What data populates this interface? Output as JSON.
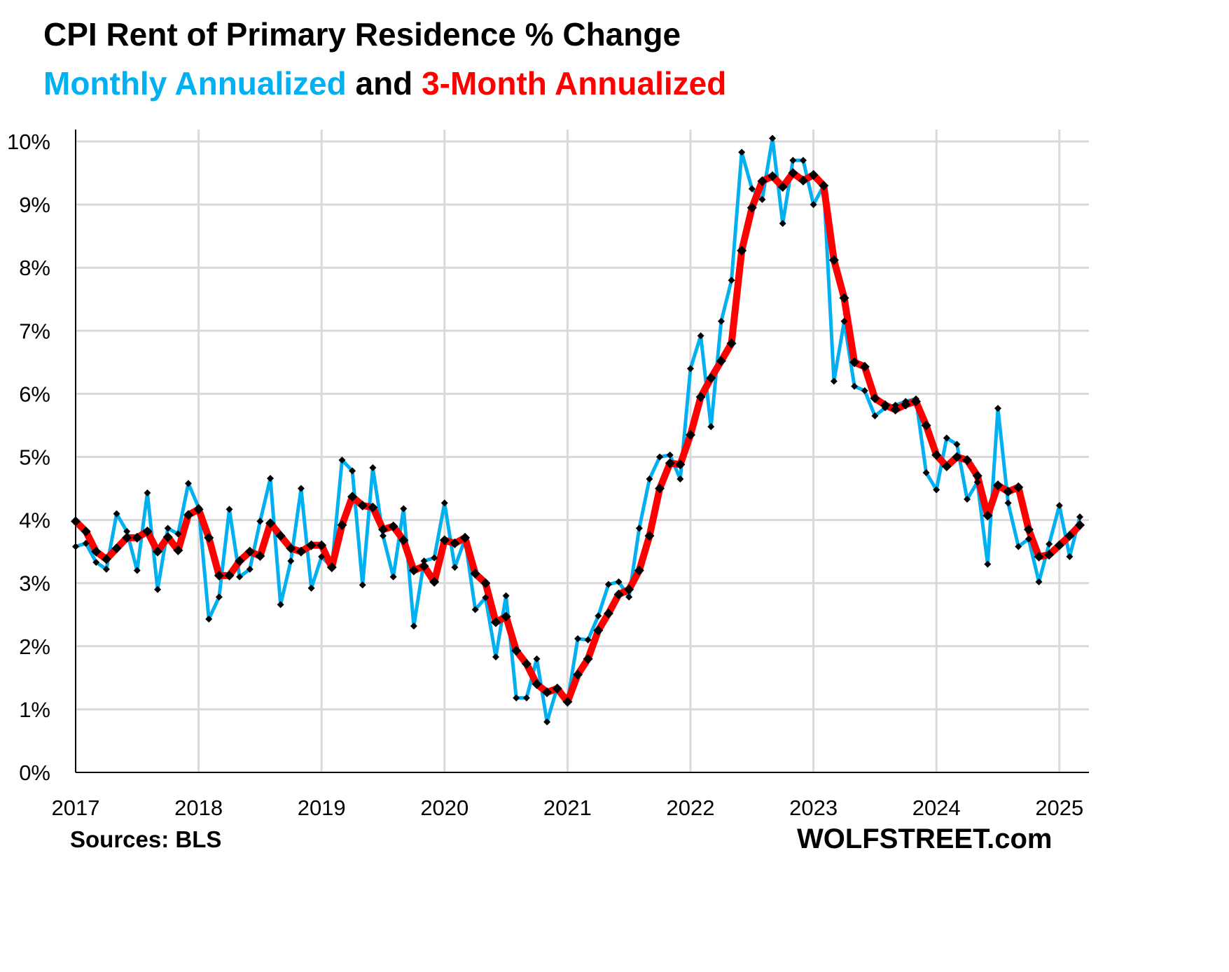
{
  "title": "CPI Rent of Primary Residence % Change",
  "subtitle": {
    "part1": "Monthly Annualized",
    "part2": " and ",
    "part3": "3-Month Annualized"
  },
  "footer": {
    "source": "Sources: BLS",
    "brand": "WOLFSTREET.com"
  },
  "colors": {
    "monthly": "#00B0F0",
    "three_month": "#FF0000",
    "markers": "#000000",
    "grid": "#D9D9D9"
  },
  "chart_data": {
    "type": "line",
    "title": "CPI Rent of Primary Residence % Change",
    "xlabel": "",
    "ylabel": "",
    "ylim": [
      0,
      10
    ],
    "y_ticks": [
      "0%",
      "1%",
      "2%",
      "3%",
      "4%",
      "5%",
      "6%",
      "7%",
      "8%",
      "9%",
      "10%"
    ],
    "x_ticks": [
      "2017",
      "2018",
      "2019",
      "2020",
      "2021",
      "2022",
      "2023",
      "2024",
      "2025"
    ],
    "grid": true,
    "legend": "none (series named in subtitle)",
    "x": [
      "2017-01",
      "2017-02",
      "2017-03",
      "2017-04",
      "2017-05",
      "2017-06",
      "2017-07",
      "2017-08",
      "2017-09",
      "2017-10",
      "2017-11",
      "2017-12",
      "2018-01",
      "2018-02",
      "2018-03",
      "2018-04",
      "2018-05",
      "2018-06",
      "2018-07",
      "2018-08",
      "2018-09",
      "2018-10",
      "2018-11",
      "2018-12",
      "2019-01",
      "2019-02",
      "2019-03",
      "2019-04",
      "2019-05",
      "2019-06",
      "2019-07",
      "2019-08",
      "2019-09",
      "2019-10",
      "2019-11",
      "2019-12",
      "2020-01",
      "2020-02",
      "2020-03",
      "2020-04",
      "2020-05",
      "2020-06",
      "2020-07",
      "2020-08",
      "2020-09",
      "2020-10",
      "2020-11",
      "2020-12",
      "2021-01",
      "2021-02",
      "2021-03",
      "2021-04",
      "2021-05",
      "2021-06",
      "2021-07",
      "2021-08",
      "2021-09",
      "2021-10",
      "2021-11",
      "2021-12",
      "2022-01",
      "2022-02",
      "2022-03",
      "2022-04",
      "2022-05",
      "2022-06",
      "2022-07",
      "2022-08",
      "2022-09",
      "2022-10",
      "2022-11",
      "2022-12",
      "2023-01",
      "2023-02",
      "2023-03",
      "2023-04",
      "2023-05",
      "2023-06",
      "2023-07",
      "2023-08",
      "2023-09",
      "2023-10",
      "2023-11",
      "2023-12",
      "2024-01",
      "2024-02",
      "2024-03",
      "2024-04",
      "2024-05",
      "2024-06",
      "2024-07",
      "2024-08",
      "2024-09",
      "2024-10",
      "2024-11",
      "2024-12",
      "2025-01",
      "2025-02",
      "2025-03"
    ],
    "series": [
      {
        "name": "Monthly Annualized",
        "color": "#00B0F0",
        "values": [
          3.58,
          3.63,
          3.33,
          3.22,
          4.1,
          3.82,
          3.2,
          4.43,
          2.9,
          3.87,
          3.78,
          4.58,
          4.2,
          2.43,
          2.78,
          4.17,
          3.1,
          3.22,
          3.98,
          4.66,
          2.66,
          3.35,
          4.5,
          2.92,
          3.42,
          3.25,
          4.95,
          4.78,
          2.97,
          4.83,
          3.75,
          3.1,
          4.18,
          2.32,
          3.35,
          3.4,
          4.27,
          3.25,
          3.7,
          2.58,
          2.77,
          1.83,
          2.8,
          1.18,
          1.18,
          1.8,
          0.8,
          1.35,
          1.12,
          2.12,
          2.1,
          2.48,
          2.98,
          3.02,
          2.78,
          3.87,
          4.65,
          5.0,
          5.03,
          4.65,
          6.4,
          6.92,
          5.48,
          7.15,
          7.8,
          9.83,
          9.25,
          9.08,
          10.05,
          8.7,
          9.7,
          9.7,
          9.0,
          9.3,
          6.2,
          7.15,
          6.12,
          6.05,
          5.65,
          5.78,
          5.82,
          5.88,
          5.92,
          4.75,
          4.48,
          5.3,
          5.2,
          4.33,
          4.6,
          3.3,
          5.77,
          4.27,
          3.58,
          3.7,
          3.02,
          3.62,
          4.23,
          3.42,
          4.05
        ]
      },
      {
        "name": "3-Month Annualized",
        "color": "#FF0000",
        "values": [
          3.98,
          3.82,
          3.5,
          3.38,
          3.55,
          3.72,
          3.72,
          3.82,
          3.5,
          3.73,
          3.52,
          4.08,
          4.17,
          3.72,
          3.12,
          3.12,
          3.35,
          3.5,
          3.43,
          3.95,
          3.75,
          3.55,
          3.5,
          3.6,
          3.6,
          3.25,
          3.92,
          4.37,
          4.23,
          4.2,
          3.85,
          3.9,
          3.68,
          3.2,
          3.27,
          3.02,
          3.68,
          3.63,
          3.72,
          3.15,
          3.0,
          2.38,
          2.47,
          1.93,
          1.72,
          1.4,
          1.27,
          1.33,
          1.12,
          1.55,
          1.8,
          2.25,
          2.52,
          2.82,
          2.9,
          3.2,
          3.75,
          4.5,
          4.9,
          4.88,
          5.35,
          5.95,
          6.25,
          6.52,
          6.8,
          8.27,
          8.95,
          9.37,
          9.45,
          9.28,
          9.5,
          9.38,
          9.47,
          9.3,
          8.12,
          7.52,
          6.5,
          6.43,
          5.93,
          5.82,
          5.75,
          5.83,
          5.88,
          5.5,
          5.03,
          4.85,
          5.0,
          4.95,
          4.7,
          4.07,
          4.55,
          4.45,
          4.52,
          3.85,
          3.42,
          3.45,
          3.6,
          3.75,
          3.92
        ]
      }
    ]
  }
}
